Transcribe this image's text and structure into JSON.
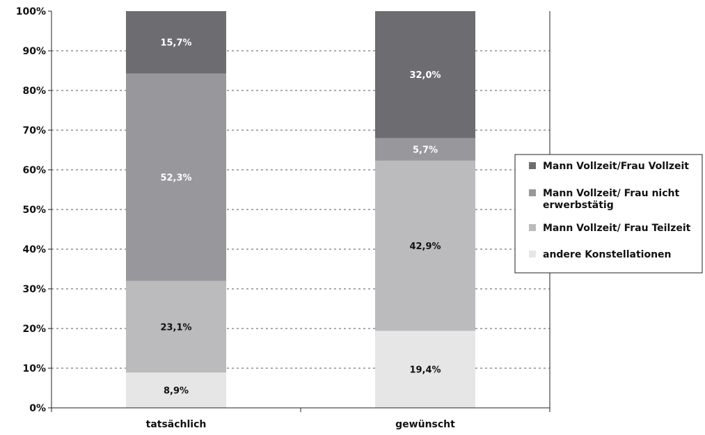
{
  "chart_data": {
    "type": "bar",
    "stacked": true,
    "percent_stacked": true,
    "title": "",
    "xlabel": "",
    "ylabel": "",
    "ylim": [
      0,
      100
    ],
    "y_ticks": [
      "0%",
      "10%",
      "20%",
      "30%",
      "40%",
      "50%",
      "60%",
      "70%",
      "80%",
      "90%",
      "100%"
    ],
    "grid": true,
    "legend_position": "right",
    "categories": [
      "tatsächlich",
      "gewünscht"
    ],
    "series": [
      {
        "name": "andere Konstellationen",
        "color": "#e6e6e7",
        "label_color": "#111111",
        "values": [
          8.9,
          19.4
        ],
        "labels": [
          "8,9%",
          "19,4%"
        ]
      },
      {
        "name": "Mann Vollzeit/ Frau Teilzeit",
        "color": "#bbbbbe",
        "label_color": "#111111",
        "values": [
          23.1,
          42.9
        ],
        "labels": [
          "23,1%",
          "42,9%"
        ]
      },
      {
        "name": "Mann Vollzeit/ Frau nicht erwerbstätig",
        "legend_lines": [
          "Mann Vollzeit/ Frau nicht",
          "erwerbstätig"
        ],
        "color": "#98989c",
        "label_color": "#ffffff",
        "values": [
          52.3,
          5.7
        ],
        "labels": [
          "52,3%",
          "5,7%"
        ]
      },
      {
        "name": "Mann Vollzeit/Frau Vollzeit",
        "color": "#6d6d71",
        "label_color": "#ffffff",
        "values": [
          15.7,
          32.0
        ],
        "labels": [
          "15,7%",
          "32,0%"
        ]
      }
    ],
    "legend_order": [
      3,
      2,
      1,
      0
    ]
  }
}
